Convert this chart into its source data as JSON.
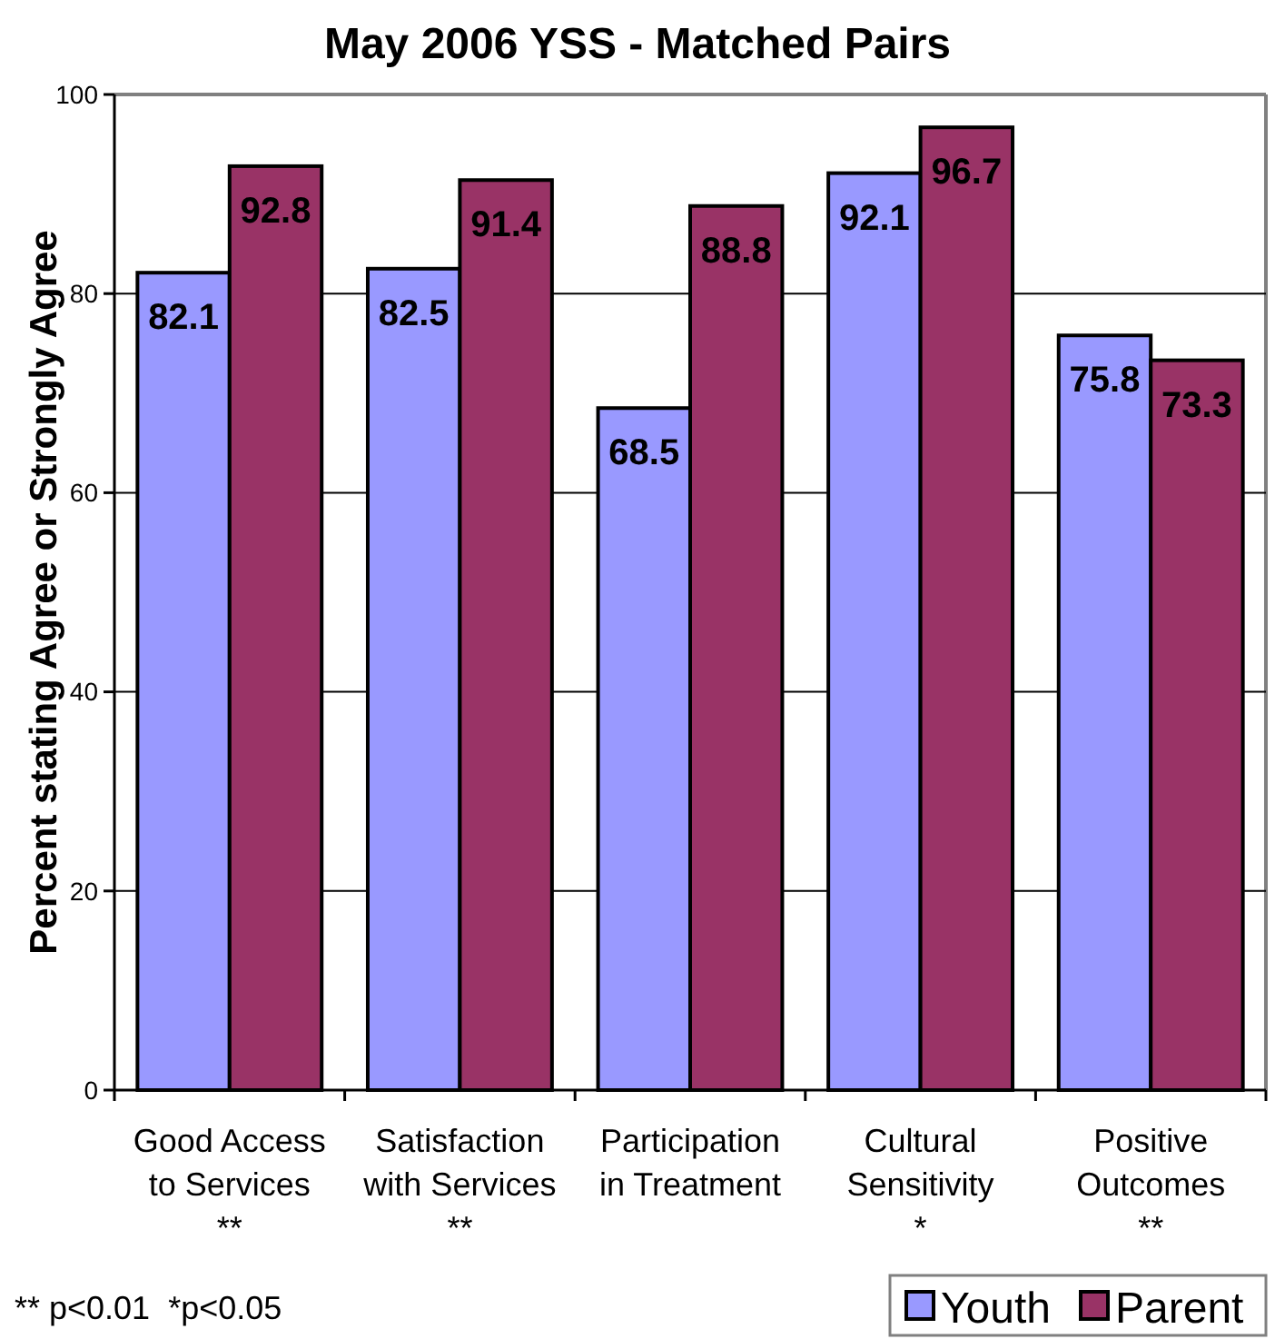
{
  "chart_data": {
    "type": "bar",
    "title": "May 2006 YSS - Matched Pairs",
    "ylabel": "Percent stating Agree or Strongly Agree",
    "categories": [
      "Good Access\nto Services\n**",
      "Satisfaction\nwith Services\n**",
      "Participation\nin Treatment",
      "Cultural\nSensitivity\n*",
      "Positive\nOutcomes\n**"
    ],
    "series": [
      {
        "name": "Youth",
        "color": "#9999ff",
        "values": [
          82.1,
          82.5,
          68.5,
          92.1,
          75.8
        ]
      },
      {
        "name": "Parent",
        "color": "#993366",
        "values": [
          92.8,
          91.4,
          88.8,
          96.7,
          73.3
        ]
      }
    ],
    "ylim": [
      0,
      100
    ],
    "yticks": [
      0,
      20,
      40,
      60,
      80,
      100
    ],
    "grid": "y",
    "legend": "bottom right",
    "data_labels": true,
    "annotations": [
      "** p<0.01  *p<0.05"
    ]
  }
}
